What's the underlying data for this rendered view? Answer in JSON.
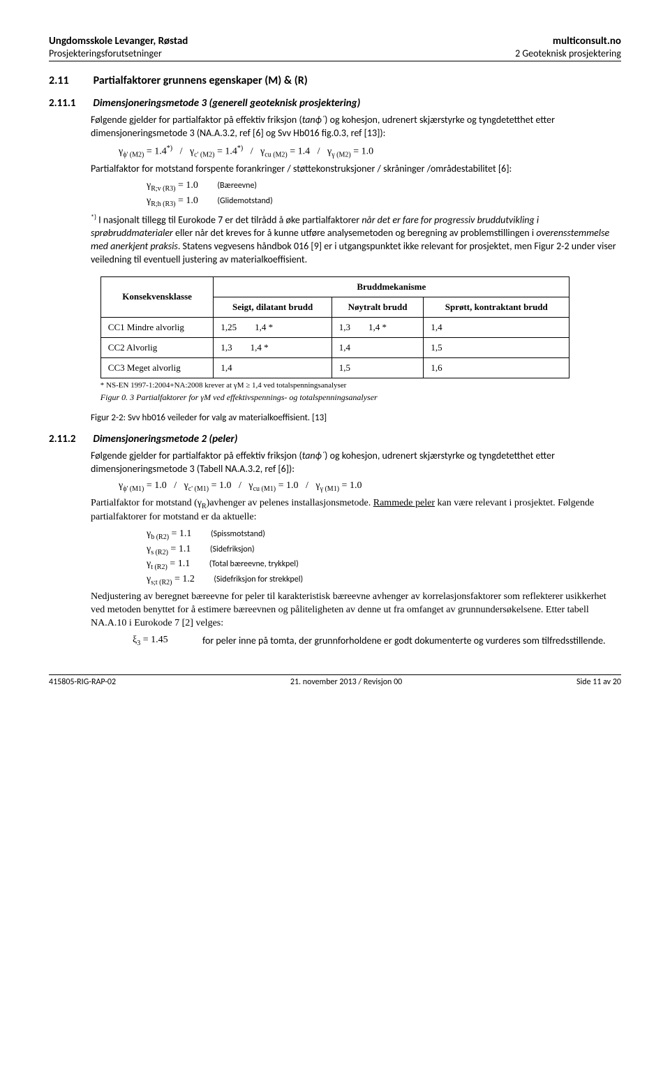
{
  "header": {
    "left_bold": "Ungdomsskole Levanger, Røstad",
    "right_bold": "multiconsult.no",
    "left_sub": "Prosjekteringsforutsetninger",
    "right_sub": "2 Geoteknisk prosjektering"
  },
  "s211": {
    "num": "2.11",
    "title": "Partialfaktorer grunnens egenskaper (M) & (R)"
  },
  "s2111": {
    "num": "2.11.1",
    "title": "Dimensjoneringsmetode 3 (generell geoteknisk prosjektering)",
    "para1_a": "Følgende gjelder for partialfaktor på effektiv friksjon (",
    "para1_i": "tanϕ´",
    "para1_b": ") og kohesjon, udrenert skjærstyrke og tyngdetetthet etter dimensjoneringsmetode 3 (NA.A.3.2, ref [6] og Svv Hb016 fig.0.3, ref [13]):",
    "formula1": "γϕ' (M2) = 1.4*)   /   γc' (M2) = 1.4*)   /   γcu (M2) = 1.4   /   γγ (M2) = 1.0",
    "para2": "Partialfaktor for motstand forspente forankringer / støttekonstruksjoner / skråninger /områdestabilitet [6]:",
    "f_rv": "γR;v (R3) = 1.0",
    "f_rv_desc": "(Bæreevne)",
    "f_rh": "γR;h (R3) = 1.0",
    "f_rh_desc": "(Glidemotstand)",
    "para3_a": "*)",
    "para3_b": "  I nasjonalt tillegg til Eurokode 7 er det tilrådd å øke partialfaktorer ",
    "para3_i1": "når det er fare for progressiv bruddutvikling i sprøbruddmaterialer",
    "para3_c": " eller når det kreves for å kunne utføre analysemetoden og beregning av problemstillingen i ",
    "para3_i2": "overensstemmelse med anerkjent praksis",
    "para3_d": ". Statens vegvesens håndbok 016 [9] er i utgangspunktet ikke relevant for prosjektet, men Figur 2-2 under viser veiledning til eventuell justering av materialkoeffisient."
  },
  "table": {
    "h_konsekvens": "Konsekvensklasse",
    "h_brudd": "Bruddmekanisme",
    "h_seigt": "Seigt, dilatant brudd",
    "h_noytralt": "Nøytralt brudd",
    "h_sprott": "Sprøtt, kontraktant brudd",
    "rows": [
      {
        "label": "CC1 Mindre alvorlig",
        "c1": "1,25",
        "c1b": "1,4 *",
        "c2": "1,3",
        "c2b": "1,4 *",
        "c3": "1,4"
      },
      {
        "label": "CC2 Alvorlig",
        "c1": "1,3",
        "c1b": "1,4 *",
        "c2": "1,4",
        "c2b": "",
        "c3": "1,5"
      },
      {
        "label": "CC3 Meget alvorlig",
        "c1": "1,4",
        "c1b": "",
        "c2": "1,5",
        "c2b": "",
        "c3": "1,6"
      }
    ],
    "note": "* NS-EN 1997-1:2004+NA:2008 krever at γM ≥ 1,4 ved totalspenningsanalyser",
    "inner_caption": "Figur 0. 3    Partialfaktorer for γM ved effektivspennings- og totalspenningsanalyser"
  },
  "fig22": "Figur 2-2:  Svv hb016 veileder for valg av materialkoeffisient. [13]",
  "s2112": {
    "num": "2.11.2",
    "title": "Dimensjoneringsmetode 2 (peler)",
    "para1_a": "Følgende gjelder for partialfaktor på effektiv friksjon (",
    "para1_i": "tanϕ´",
    "para1_b": ") og kohesjon, udrenert skjærstyrke og tyngdetetthet etter dimensjoneringsmetode 3 (Tabell NA.A.3.2, ref      [6]):",
    "formula1": "γϕ' (M1) = 1.0   /   γc' (M1) = 1.0   /   γcu (M1) = 1.0   /   γγ (M1) = 1.0",
    "para2_a": "Partialfaktor for motstand (γ",
    "para2_sub": "R",
    "para2_b": ")avhenger av pelenes installasjonsmetode. ",
    "para2_u": "Rammede peler",
    "para2_c": " kan være relevant i prosjektet. Følgende partialfaktorer for motstand er da aktuelle:",
    "fb": "γb (R2) = 1.1",
    "fb_desc": "(Spissmotstand)",
    "fs": "γs (R2) = 1.1",
    "fs_desc": "(Sidefriksjon)",
    "ft": "γt (R2) = 1.1",
    "ft_desc": "(Total bæreevne, trykkpel)",
    "fst": "γs;t (R2) = 1.2",
    "fst_desc": "(Sidefriksjon for strekkpel)",
    "para3": "Nedjustering av beregnet bæreevne for peler til karakteristisk bæreevne avhenger av korrelasjonsfaktorer som reflekterer usikkerhet ved metoden benyttet for å estimere bæreevnen og påliteligheten av denne ut fra omfanget av grunnundersøkelsene. Etter tabell NA.A.10 i Eurokode 7 [2] velges:",
    "xi_val": "ξ3 = 1.45",
    "xi_desc": "for peler inne på tomta, der grunnforholdene er godt dokumenterte og vurderes som tilfredsstillende."
  },
  "footer": {
    "left": "415805-RIG-RAP-02",
    "center": "21. november 2013 / Revisjon 00",
    "right": "Side 11 av 20"
  }
}
